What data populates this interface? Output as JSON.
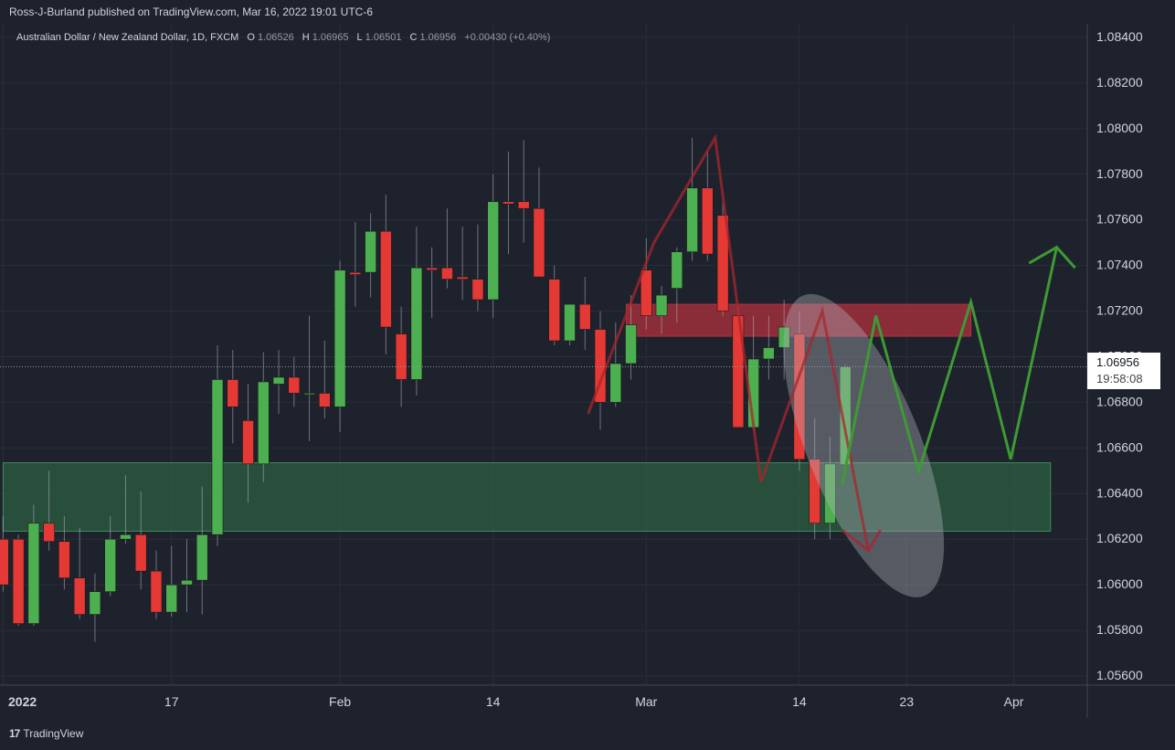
{
  "header": {
    "publisher_text": "Ross-J-Burland published on TradingView.com, Mar 16, 2022 19:01 UTC-6"
  },
  "legend": {
    "symbol": "Australian Dollar / New Zealand Dollar, 1D, FXCM",
    "o_label": "O",
    "o_value": "1.06526",
    "h_label": "H",
    "h_value": "1.06965",
    "l_label": "L",
    "l_value": "1.06501",
    "c_label": "C",
    "c_value": "1.06956",
    "change": "+0.00430 (+0.40%)"
  },
  "price_badge": {
    "price": "1.06956",
    "countdown": "19:58:08"
  },
  "footer": {
    "brand_icon": "17",
    "brand": "TradingView"
  },
  "colors": {
    "background": "#1e222d",
    "grid": "#2a2e39",
    "up": "#4caf50",
    "down": "#e53935",
    "supply_zone": "#b5303f",
    "demand_zone": "#2e6b45",
    "projection_green": "#3d9a34",
    "projection_red": "#a8262c",
    "highlight_ellipse": "#b2b5be"
  },
  "chart_data": {
    "type": "candlestick",
    "y_tick_labels": [
      "1.08400",
      "1.08200",
      "1.08000",
      "1.07800",
      "1.07600",
      "1.07400",
      "1.07200",
      "1.07000",
      "1.06800",
      "1.06600",
      "1.06400",
      "1.06200",
      "1.06000",
      "1.05800",
      "1.05600"
    ],
    "x_tick_labels": [
      {
        "label": "2022",
        "bar": 0
      },
      {
        "label": "17",
        "bar": 11
      },
      {
        "label": "Feb",
        "bar": 22
      },
      {
        "label": "14",
        "bar": 32
      },
      {
        "label": "Mar",
        "bar": 42
      },
      {
        "label": "14",
        "bar": 52
      },
      {
        "label": "23",
        "bar": 59
      },
      {
        "label": "Apr",
        "bar": 66
      }
    ],
    "ylim": [
      1.0556,
      1.0846
    ],
    "x_bar_range": [
      -0.2,
      70.8
    ],
    "last_price": 1.06956,
    "candles": [
      {
        "o": 1.062,
        "h": 1.063,
        "l": 1.0597,
        "c": 1.06
      },
      {
        "o": 1.062,
        "h": 1.0622,
        "l": 1.0582,
        "c": 1.0583
      },
      {
        "o": 1.0583,
        "h": 1.0635,
        "l": 1.0582,
        "c": 1.0627
      },
      {
        "o": 1.0627,
        "h": 1.065,
        "l": 1.0615,
        "c": 1.0619
      },
      {
        "o": 1.0619,
        "h": 1.063,
        "l": 1.0598,
        "c": 1.0603
      },
      {
        "o": 1.0603,
        "h": 1.0625,
        "l": 1.0585,
        "c": 1.0587
      },
      {
        "o": 1.0587,
        "h": 1.0605,
        "l": 1.0575,
        "c": 1.0597
      },
      {
        "o": 1.0597,
        "h": 1.063,
        "l": 1.0595,
        "c": 1.062
      },
      {
        "o": 1.062,
        "h": 1.0648,
        "l": 1.0618,
        "c": 1.0622
      },
      {
        "o": 1.0622,
        "h": 1.0641,
        "l": 1.0598,
        "c": 1.0606
      },
      {
        "o": 1.0606,
        "h": 1.0615,
        "l": 1.0585,
        "c": 1.0588
      },
      {
        "o": 1.0588,
        "h": 1.0617,
        "l": 1.0586,
        "c": 1.06
      },
      {
        "o": 1.06,
        "h": 1.062,
        "l": 1.0588,
        "c": 1.0602
      },
      {
        "o": 1.0602,
        "h": 1.0643,
        "l": 1.0587,
        "c": 1.0622
      },
      {
        "o": 1.0622,
        "h": 1.0705,
        "l": 1.0617,
        "c": 1.069
      },
      {
        "o": 1.069,
        "h": 1.0703,
        "l": 1.0662,
        "c": 1.0678
      },
      {
        "o": 1.0672,
        "h": 1.0688,
        "l": 1.0636,
        "c": 1.0653
      },
      {
        "o": 1.0653,
        "h": 1.0702,
        "l": 1.0645,
        "c": 1.0689
      },
      {
        "o": 1.0688,
        "h": 1.0703,
        "l": 1.0675,
        "c": 1.0691
      },
      {
        "o": 1.0691,
        "h": 1.07,
        "l": 1.0678,
        "c": 1.0684
      },
      {
        "o": 1.0684,
        "h": 1.0718,
        "l": 1.0663,
        "c": 1.0684
      },
      {
        "o": 1.0684,
        "h": 1.0707,
        "l": 1.0673,
        "c": 1.0678
      },
      {
        "o": 1.0678,
        "h": 1.0742,
        "l": 1.0667,
        "c": 1.0738
      },
      {
        "o": 1.0737,
        "h": 1.0759,
        "l": 1.0722,
        "c": 1.0736
      },
      {
        "o": 1.0737,
        "h": 1.0763,
        "l": 1.0726,
        "c": 1.0755
      },
      {
        "o": 1.0755,
        "h": 1.0771,
        "l": 1.0701,
        "c": 1.0713
      },
      {
        "o": 1.071,
        "h": 1.0722,
        "l": 1.0678,
        "c": 1.069
      },
      {
        "o": 1.069,
        "h": 1.0757,
        "l": 1.0683,
        "c": 1.0739
      },
      {
        "o": 1.0739,
        "h": 1.0748,
        "l": 1.0717,
        "c": 1.0738
      },
      {
        "o": 1.0739,
        "h": 1.0765,
        "l": 1.073,
        "c": 1.0734
      },
      {
        "o": 1.0735,
        "h": 1.0757,
        "l": 1.0725,
        "c": 1.0734
      },
      {
        "o": 1.0734,
        "h": 1.0758,
        "l": 1.072,
        "c": 1.0725
      },
      {
        "o": 1.0725,
        "h": 1.078,
        "l": 1.0717,
        "c": 1.0768
      },
      {
        "o": 1.0768,
        "h": 1.079,
        "l": 1.0745,
        "c": 1.0767
      },
      {
        "o": 1.0768,
        "h": 1.0795,
        "l": 1.075,
        "c": 1.0765
      },
      {
        "o": 1.0765,
        "h": 1.0783,
        "l": 1.0735,
        "c": 1.0735
      },
      {
        "o": 1.0734,
        "h": 1.074,
        "l": 1.0705,
        "c": 1.0707
      },
      {
        "o": 1.0707,
        "h": 1.0723,
        "l": 1.0705,
        "c": 1.0723
      },
      {
        "o": 1.0723,
        "h": 1.0735,
        "l": 1.0703,
        "c": 1.0712
      },
      {
        "o": 1.0712,
        "h": 1.072,
        "l": 1.0668,
        "c": 1.068
      },
      {
        "o": 1.068,
        "h": 1.0715,
        "l": 1.0678,
        "c": 1.0697
      },
      {
        "o": 1.0697,
        "h": 1.0727,
        "l": 1.069,
        "c": 1.0714
      },
      {
        "o": 1.0738,
        "h": 1.0752,
        "l": 1.0712,
        "c": 1.0718
      },
      {
        "o": 1.0718,
        "h": 1.0731,
        "l": 1.071,
        "c": 1.0727
      },
      {
        "o": 1.073,
        "h": 1.0748,
        "l": 1.0715,
        "c": 1.0746
      },
      {
        "o": 1.0746,
        "h": 1.0796,
        "l": 1.0742,
        "c": 1.0774
      },
      {
        "o": 1.0774,
        "h": 1.079,
        "l": 1.0742,
        "c": 1.0745
      },
      {
        "o": 1.0762,
        "h": 1.0768,
        "l": 1.0718,
        "c": 1.072
      },
      {
        "o": 1.0718,
        "h": 1.0722,
        "l": 1.067,
        "c": 1.0669
      },
      {
        "o": 1.0669,
        "h": 1.0718,
        "l": 1.0668,
        "c": 1.0699
      },
      {
        "o": 1.0699,
        "h": 1.0718,
        "l": 1.069,
        "c": 1.0704
      },
      {
        "o": 1.0704,
        "h": 1.0725,
        "l": 1.069,
        "c": 1.0713
      },
      {
        "o": 1.071,
        "h": 1.072,
        "l": 1.065,
        "c": 1.0655
      },
      {
        "o": 1.0655,
        "h": 1.0673,
        "l": 1.062,
        "c": 1.0627
      },
      {
        "o": 1.0627,
        "h": 1.0665,
        "l": 1.062,
        "c": 1.0653
      },
      {
        "o": 1.06526,
        "h": 1.06965,
        "l": 1.06501,
        "c": 1.06956
      }
    ],
    "zones": [
      {
        "name": "supply",
        "x0": 40.7,
        "x1": 63.2,
        "y0": 1.0709,
        "y1": 1.0723
      },
      {
        "name": "demand",
        "x0": 0,
        "x1": 68.4,
        "y0": 1.06235,
        "y1": 1.06535
      }
    ],
    "projection_red": [
      [
        38.2,
        1.0675
      ],
      [
        42.5,
        1.075
      ],
      [
        46.5,
        1.0796
      ],
      [
        49.5,
        1.0645
      ],
      [
        53.5,
        1.072
      ],
      [
        56.5,
        1.0615
      ]
    ],
    "projection_red_arrowhead": [
      [
        54.8,
        1.0624
      ],
      [
        56.5,
        1.0615
      ],
      [
        57.3,
        1.0624
      ]
    ],
    "projection_green": [
      [
        54.8,
        1.0644
      ],
      [
        57.0,
        1.0718
      ],
      [
        59.8,
        1.065
      ],
      [
        63.2,
        1.0724
      ],
      [
        65.8,
        1.0655
      ],
      [
        68.8,
        1.0748
      ]
    ],
    "projection_green_arrowhead": [
      [
        67.0,
        1.0741
      ],
      [
        68.8,
        1.0748
      ],
      [
        70.0,
        1.0739
      ]
    ],
    "highlight_ellipse": {
      "cx": 56.2,
      "cy": 1.0661,
      "rx_bars": 3.7,
      "ry_price": 0.0071,
      "rotation_deg": -22
    }
  }
}
